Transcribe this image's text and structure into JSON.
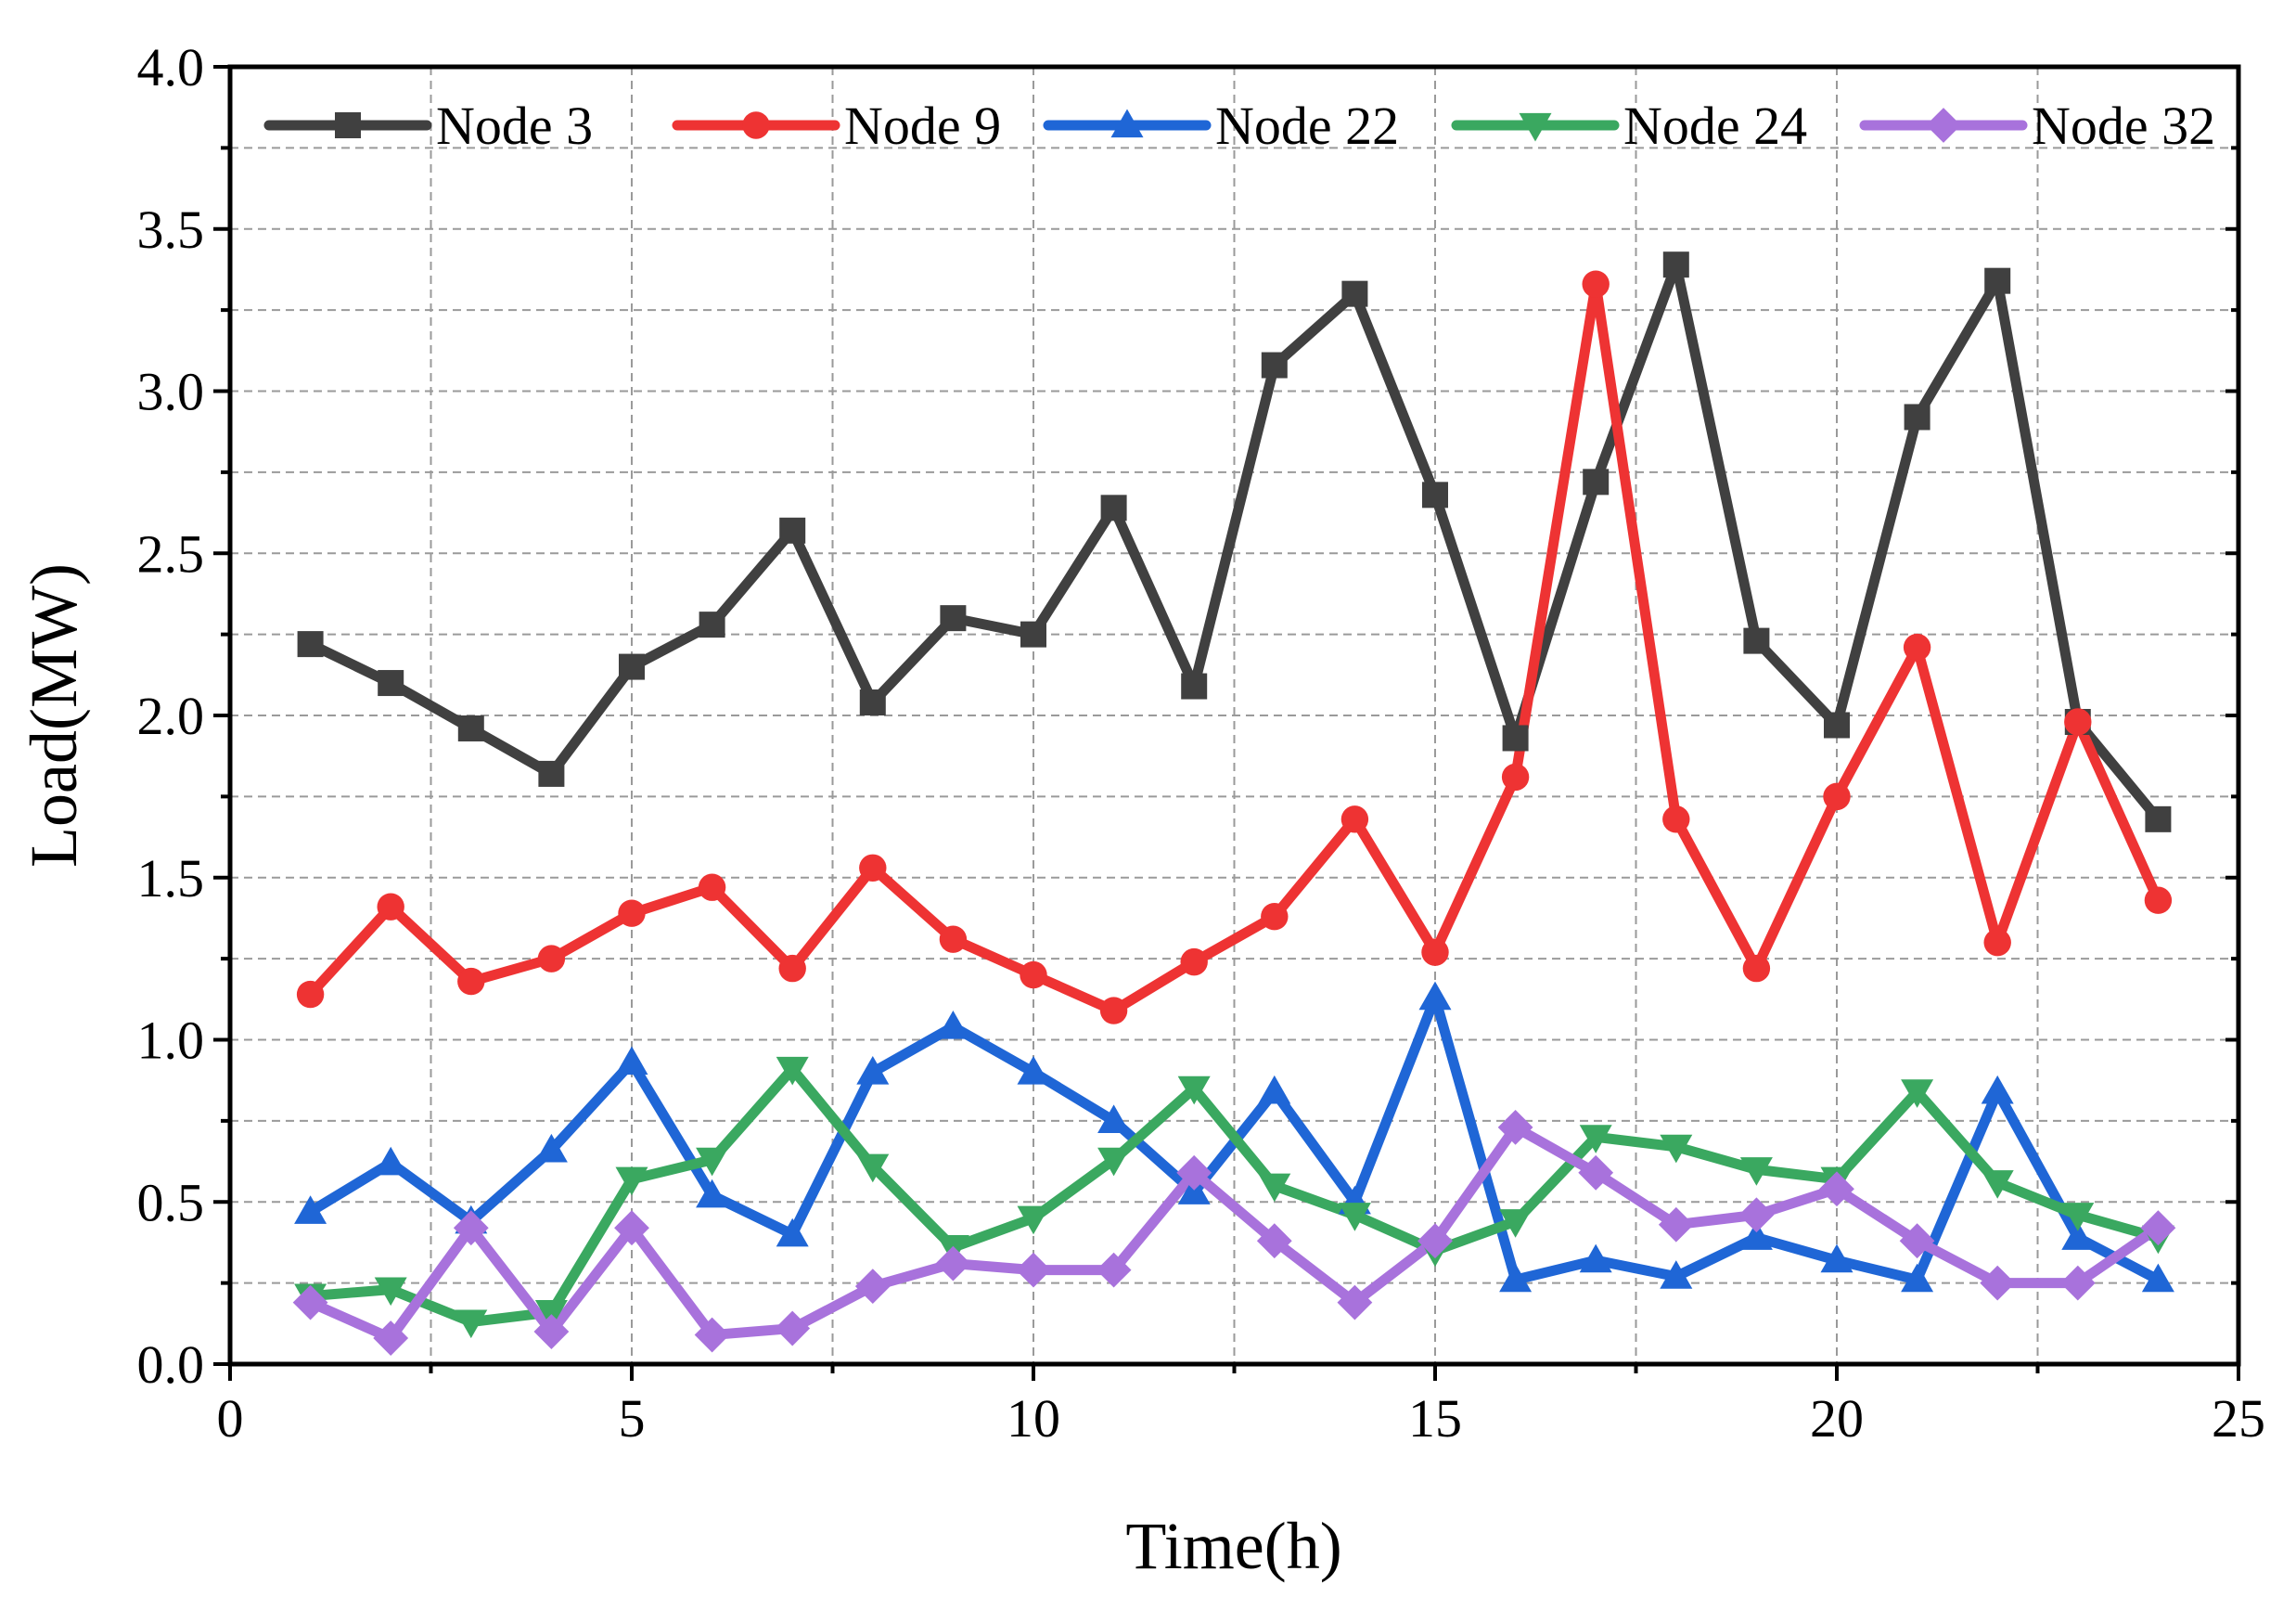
{
  "chart_data": {
    "type": "line",
    "title": "",
    "xlabel": "Time(h)",
    "ylabel": "Load(MW)",
    "xlim": [
      0,
      25
    ],
    "ylim": [
      0,
      4.0
    ],
    "xticks": [
      0,
      5,
      10,
      15,
      20,
      25
    ],
    "xtick_labels": [
      "0",
      "5",
      "10",
      "15",
      "20",
      "25"
    ],
    "yticks": [
      0,
      0.5,
      1.0,
      1.5,
      2.0,
      2.5,
      3.0,
      3.5,
      4.0
    ],
    "ytick_labels": [
      "0.0",
      "0.5",
      "1.0",
      "1.5",
      "2.0",
      "2.5",
      "3.0",
      "3.5",
      "4.0"
    ],
    "grid": true,
    "legend_position": "top",
    "x": [
      1,
      2,
      3,
      4,
      5,
      6,
      7,
      8,
      9,
      10,
      11,
      12,
      13,
      14,
      15,
      16,
      17,
      18,
      19,
      20,
      21,
      22,
      23,
      24
    ],
    "series": [
      {
        "name": "Node 3",
        "color": "#404040",
        "marker": "square",
        "values": [
          2.22,
          2.1,
          1.96,
          1.82,
          2.15,
          2.28,
          2.57,
          2.04,
          2.3,
          2.25,
          2.64,
          2.09,
          3.08,
          3.3,
          2.68,
          1.93,
          2.72,
          3.39,
          2.23,
          1.97,
          2.92,
          3.34,
          1.98,
          1.68
        ]
      },
      {
        "name": "Node 9",
        "color": "#ee3333",
        "marker": "circle",
        "values": [
          1.14,
          1.41,
          1.18,
          1.25,
          1.39,
          1.47,
          1.22,
          1.53,
          1.31,
          1.2,
          1.09,
          1.24,
          1.38,
          1.68,
          1.27,
          1.81,
          3.33,
          1.68,
          1.22,
          1.75,
          2.21,
          1.3,
          1.98,
          1.43
        ]
      },
      {
        "name": "Node 22",
        "color": "#1f66d6",
        "marker": "triangle-up",
        "values": [
          0.47,
          0.62,
          0.44,
          0.66,
          0.93,
          0.52,
          0.4,
          0.9,
          1.04,
          0.9,
          0.75,
          0.53,
          0.84,
          0.5,
          1.13,
          0.26,
          0.32,
          0.27,
          0.39,
          0.32,
          0.26,
          0.84,
          0.39,
          0.26
        ]
      },
      {
        "name": "Node 24",
        "color": "#3aa860",
        "marker": "triangle-down",
        "values": [
          0.21,
          0.23,
          0.13,
          0.16,
          0.57,
          0.63,
          0.91,
          0.61,
          0.36,
          0.45,
          0.63,
          0.85,
          0.55,
          0.46,
          0.35,
          0.44,
          0.7,
          0.67,
          0.6,
          0.57,
          0.84,
          0.56,
          0.46,
          0.39
        ]
      },
      {
        "name": "Node 32",
        "color": "#a872dc",
        "marker": "diamond",
        "values": [
          0.19,
          0.08,
          0.42,
          0.1,
          0.42,
          0.09,
          0.11,
          0.24,
          0.31,
          0.29,
          0.29,
          0.59,
          0.38,
          0.19,
          0.38,
          0.73,
          0.59,
          0.43,
          0.46,
          0.54,
          0.38,
          0.25,
          0.25,
          0.42
        ]
      }
    ]
  }
}
